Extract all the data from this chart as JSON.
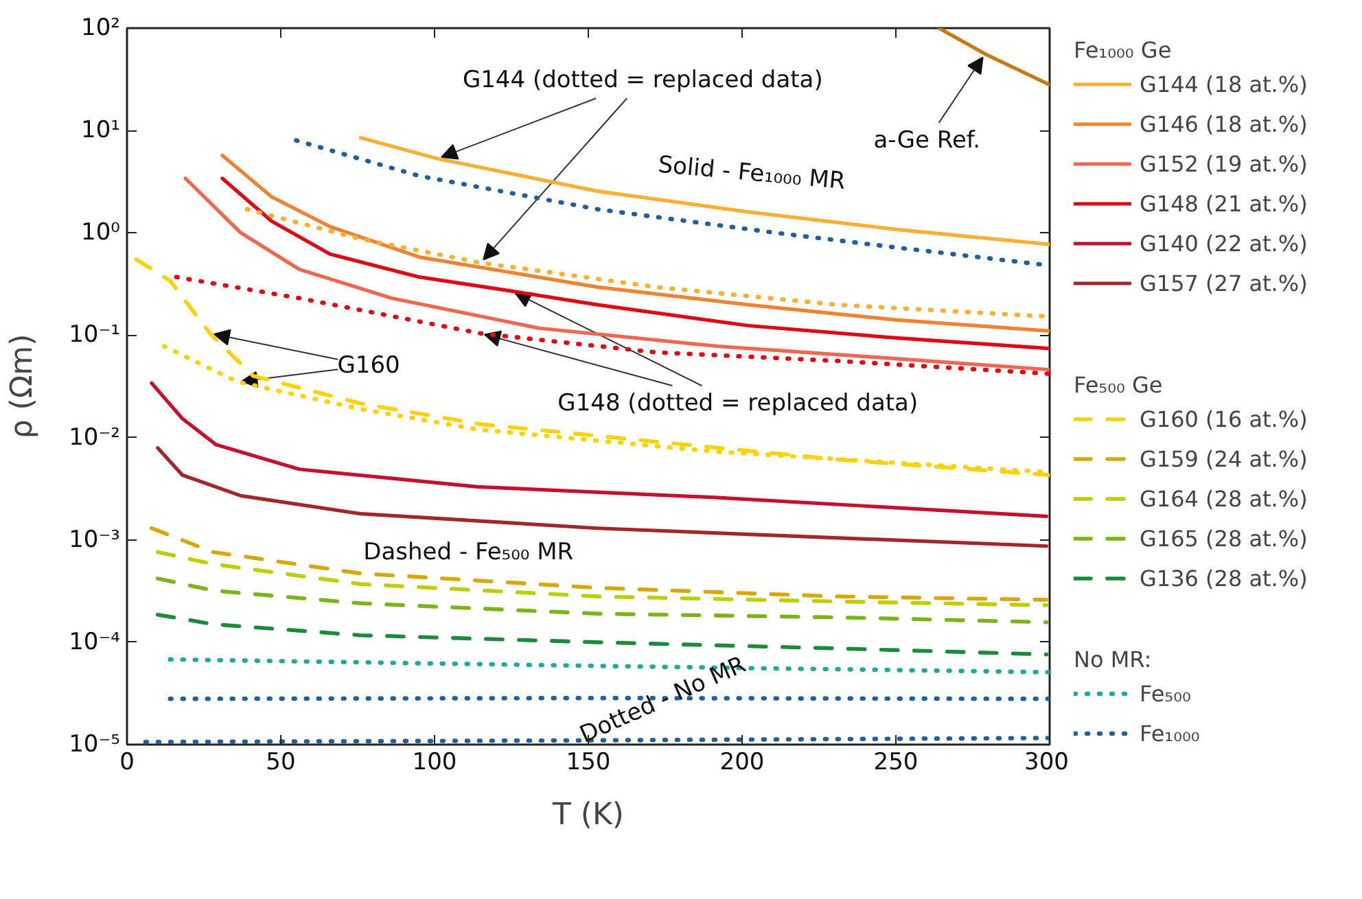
{
  "chart_data": {
    "type": "line",
    "xlabel": "T (K)",
    "ylabel": "ρ (Ωm)",
    "xlim": [
      0,
      300
    ],
    "ylim": [
      1e-05,
      100
    ],
    "xticks": [
      0,
      50,
      100,
      150,
      200,
      250,
      300
    ],
    "yticks": [
      {
        "value": 1e-05,
        "label": "10⁻⁵"
      },
      {
        "value": 0.0001,
        "label": "10⁻⁴"
      },
      {
        "value": 0.001,
        "label": "10⁻³"
      },
      {
        "value": 0.01,
        "label": "10⁻²"
      },
      {
        "value": 0.1,
        "label": "10⁻¹"
      },
      {
        "value": 1,
        "label": "10⁰"
      },
      {
        "value": 10,
        "label": "10¹"
      },
      {
        "value": 100,
        "label": "10²"
      }
    ],
    "log": "y",
    "grid": false,
    "legend": "right",
    "legend_title": "Fe₁₀₀₀ Ge",
    "annotations": [
      {
        "text": "G144 (dotted = replaced data)",
        "x": 101,
        "y": 5.3
      },
      "Solid - Fe₁₀₀₀ MR",
      {
        "text": "a-Ge Ref.",
        "x": 279,
        "y": 56
      },
      {
        "text": "G160",
        "x": 27,
        "y": 0.104
      },
      {
        "text": "G148 (dotted = replaced data)",
        "x": 125,
        "y": 0.27
      },
      "Dashed - Fe₅₀₀ MR",
      "Dotted - No MR",
      "Fe₅₀₀ Ge",
      "No MR:"
    ],
    "series": [
      {
        "name": "G144 (18 at.%)",
        "color": "#fbb034",
        "line_style": "solid",
        "x": [
          76,
          101,
          153,
          202,
          250,
          300
        ],
        "values": [
          8.5,
          5.3,
          2.55,
          1.6,
          1.08,
          0.77
        ]
      },
      {
        "name": "G146 (18 at.%)",
        "color": "#f08232",
        "line_style": "solid",
        "x": [
          31,
          47,
          66,
          95,
          153,
          202,
          250,
          300
        ],
        "values": [
          5.7,
          2.25,
          1.15,
          0.58,
          0.295,
          0.198,
          0.141,
          0.11
        ]
      },
      {
        "name": "G152 (19 at.%)",
        "color": "#f26650",
        "line_style": "solid",
        "x": [
          19,
          37,
          56,
          86,
          134,
          192,
          250,
          300
        ],
        "values": [
          3.4,
          1.0,
          0.44,
          0.23,
          0.117,
          0.078,
          0.059,
          0.046
        ]
      },
      {
        "name": "G148 (21 at.%)",
        "color": "#e30613",
        "line_style": "solid",
        "x": [
          31,
          47,
          66,
          95,
          125,
          153,
          202,
          250,
          300
        ],
        "values": [
          3.4,
          1.3,
          0.62,
          0.37,
          0.27,
          0.198,
          0.124,
          0.094,
          0.074
        ]
      },
      {
        "name": "G140 (22 at.%)",
        "color": "#c8102e",
        "line_style": "solid",
        "x": [
          8,
          18,
          29,
          56,
          114,
          191,
          299
        ],
        "values": [
          0.034,
          0.0153,
          0.0085,
          0.0049,
          0.0033,
          0.0026,
          0.0017
        ]
      },
      {
        "name": "G157 (27 at.%)",
        "color": "#a3262a",
        "line_style": "solid",
        "x": [
          10,
          18,
          37,
          76,
          153,
          230,
          299
        ],
        "values": [
          0.0079,
          0.0043,
          0.0027,
          0.0018,
          0.0013,
          0.00105,
          0.00087
        ]
      },
      {
        "name": "G160 (16 at.%)",
        "color": "#ffd200",
        "line_style": "dashed",
        "x": [
          3,
          14,
          27,
          41,
          76,
          115,
          172,
          231,
          300
        ],
        "values": [
          0.55,
          0.34,
          0.104,
          0.04,
          0.0215,
          0.0135,
          0.0091,
          0.0061,
          0.0043
        ]
      },
      {
        "name": "G159 (24 at.%)",
        "color": "#d9a800",
        "line_style": "dashed",
        "x": [
          8,
          28,
          76,
          153,
          231,
          299
        ],
        "values": [
          0.0013,
          0.00076,
          0.00047,
          0.00034,
          0.00028,
          0.00026
        ]
      },
      {
        "name": "G164 (28 at.%)",
        "color": "#bccf00",
        "line_style": "dashed",
        "x": [
          10,
          28,
          76,
          153,
          231,
          299
        ],
        "values": [
          0.00076,
          0.00058,
          0.00037,
          0.00028,
          0.00025,
          0.00023
        ]
      },
      {
        "name": "G165 (28 at.%)",
        "color": "#7bb31a",
        "line_style": "dashed",
        "x": [
          10,
          28,
          76,
          153,
          231,
          299
        ],
        "values": [
          0.00042,
          0.00032,
          0.00024,
          0.00019,
          0.000175,
          0.000157
        ]
      },
      {
        "name": "G136 (28 at.%)",
        "color": "#1b8a3a",
        "line_style": "dashed",
        "x": [
          10,
          28,
          76,
          153,
          231,
          299
        ],
        "values": [
          0.000186,
          0.00015,
          0.000117,
          0.0001,
          8.7e-05,
          7.6e-05
        ]
      },
      {
        "name": "Fe₅₀₀",
        "color": "#1aab9b",
        "line_style": "dotted",
        "x": [
          14,
          100,
          200,
          300
        ],
        "values": [
          6.8e-05,
          6.2e-05,
          5.6e-05,
          5.1e-05
        ]
      },
      {
        "name": "Fe₁₀₀₀",
        "color": "#1f5fa0",
        "line_style": "dotted",
        "x": [
          6,
          150,
          300
        ],
        "values": [
          1.06e-05,
          1.1e-05,
          1.16e-05
        ]
      },
      {
        "color": "#fbb034",
        "line_style": "dotted",
        "x": [
          39,
          76,
          115,
          172,
          231,
          300
        ],
        "values": [
          1.7,
          0.87,
          0.51,
          0.295,
          0.198,
          0.152
        ]
      },
      {
        "color": "#e30613",
        "line_style": "dotted",
        "x": [
          16,
          56,
          115,
          172,
          231,
          300
        ],
        "values": [
          0.37,
          0.23,
          0.104,
          0.068,
          0.056,
          0.042
        ]
      },
      {
        "color": "#ffd200",
        "line_style": "dotted",
        "x": [
          12,
          36,
          76,
          114,
          191,
          299
        ],
        "values": [
          0.078,
          0.035,
          0.019,
          0.012,
          0.0073,
          0.0046
        ]
      },
      {
        "color": "#1f5fa0",
        "line_style": "dotted",
        "x": [
          55,
          95,
          153,
          211,
          250,
          300
        ],
        "values": [
          8.0,
          3.6,
          1.7,
          1.0,
          0.72,
          0.48
        ]
      },
      {
        "color": "#1f5fa0",
        "line_style": "dotted",
        "x": [
          14,
          150,
          300
        ],
        "values": [
          2.8e-05,
          2.85e-05,
          2.8e-05
        ]
      },
      {
        "color": "#c87a10",
        "line_style": "solid",
        "x": [
          264,
          279,
          300
        ],
        "values": [
          100,
          56,
          28
        ]
      }
    ]
  }
}
